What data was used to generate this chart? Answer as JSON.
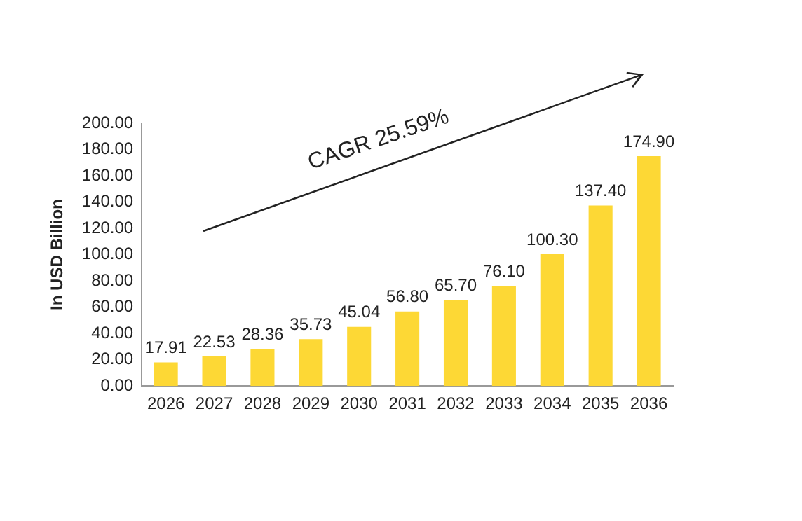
{
  "chart_data": {
    "type": "bar",
    "ylabel": "In USD Billion",
    "categories": [
      "2026",
      "2027",
      "2028",
      "2029",
      "2030",
      "2031",
      "2032",
      "2033",
      "2034",
      "2035",
      "2036"
    ],
    "values": [
      17.91,
      22.53,
      28.36,
      35.73,
      45.04,
      56.8,
      65.7,
      76.1,
      100.3,
      137.4,
      174.9
    ],
    "value_labels": [
      "17.91",
      "22.53",
      "28.36",
      "35.73",
      "45.04",
      "56.80",
      "65.70",
      "76.10",
      "100.30",
      "137.40",
      "174.90"
    ],
    "color": "#fdd835",
    "ylim": [
      0,
      200
    ],
    "yticks": [
      {
        "value": 0,
        "label": "0.00"
      },
      {
        "value": 20,
        "label": "20.00"
      },
      {
        "value": 40,
        "label": "40.00"
      },
      {
        "value": 60,
        "label": "60.00"
      },
      {
        "value": 80,
        "label": "80.00"
      },
      {
        "value": 100,
        "label": "100.00"
      },
      {
        "value": 120,
        "label": "120.00"
      },
      {
        "value": 140,
        "label": "140.00"
      },
      {
        "value": 160,
        "label": "160.00"
      },
      {
        "value": 180,
        "label": "180.00"
      },
      {
        "value": 200,
        "label": "200.00"
      }
    ],
    "grid": false,
    "legend": false,
    "annotations": [
      "CAGR 25.59%"
    ]
  }
}
